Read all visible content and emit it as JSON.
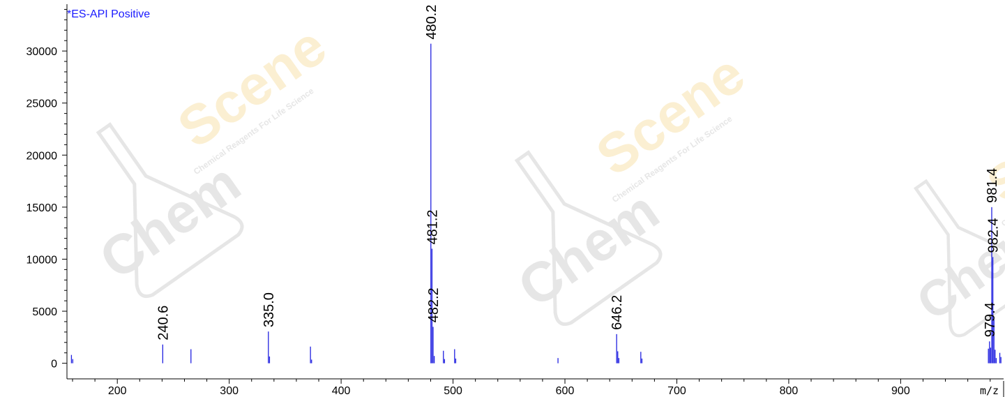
{
  "colors": {
    "trace": "#2020e0",
    "title": "#1a1aff",
    "axis": "#000000",
    "watermark": "#e6e6e6",
    "watermark_accent": "#fbefd2"
  },
  "watermark": {
    "brand": "ChemScene",
    "left": "Chem",
    "right": "Scene",
    "tagline": "Chemical Reagents For Life Science"
  },
  "chart_data": {
    "type": "bar",
    "title": "*ES-API Positive",
    "xunit": "m/z",
    "xlim": [
      155,
      992
    ],
    "ylim": [
      -1500,
      34500
    ],
    "xticks": [
      200,
      300,
      400,
      500,
      600,
      700,
      800,
      900
    ],
    "yticks": [
      0,
      5000,
      10000,
      15000,
      20000,
      25000,
      30000
    ],
    "peaks": [
      {
        "x": 159.0,
        "y": 800
      },
      {
        "x": 160.2,
        "y": 400
      },
      {
        "x": 240.6,
        "y": 1800,
        "label": "240.6"
      },
      {
        "x": 265.8,
        "y": 1350
      },
      {
        "x": 335.0,
        "y": 3050,
        "label": "335.0"
      },
      {
        "x": 336.0,
        "y": 650
      },
      {
        "x": 372.6,
        "y": 1600
      },
      {
        "x": 373.6,
        "y": 350
      },
      {
        "x": 480.2,
        "y": 30700,
        "label": "480.2"
      },
      {
        "x": 481.2,
        "y": 11000,
        "label": "481.2"
      },
      {
        "x": 482.2,
        "y": 3500,
        "label": "482.2"
      },
      {
        "x": 483.2,
        "y": 700
      },
      {
        "x": 491.4,
        "y": 1200
      },
      {
        "x": 492.4,
        "y": 400
      },
      {
        "x": 501.4,
        "y": 1350
      },
      {
        "x": 502.4,
        "y": 450
      },
      {
        "x": 593.8,
        "y": 500
      },
      {
        "x": 646.2,
        "y": 2800,
        "label": "646.2"
      },
      {
        "x": 647.2,
        "y": 1150
      },
      {
        "x": 648.2,
        "y": 500
      },
      {
        "x": 667.8,
        "y": 1100
      },
      {
        "x": 668.8,
        "y": 450
      },
      {
        "x": 978.4,
        "y": 1400
      },
      {
        "x": 979.4,
        "y": 2100,
        "label": "979.4"
      },
      {
        "x": 980.4,
        "y": 1500
      },
      {
        "x": 981.4,
        "y": 15000,
        "label": "981.4"
      },
      {
        "x": 982.4,
        "y": 10200,
        "label": "982.4"
      },
      {
        "x": 983.4,
        "y": 4200
      },
      {
        "x": 984.4,
        "y": 1300
      },
      {
        "x": 985.4,
        "y": 500
      },
      {
        "x": 988.6,
        "y": 1000
      },
      {
        "x": 989.6,
        "y": 600
      }
    ]
  }
}
